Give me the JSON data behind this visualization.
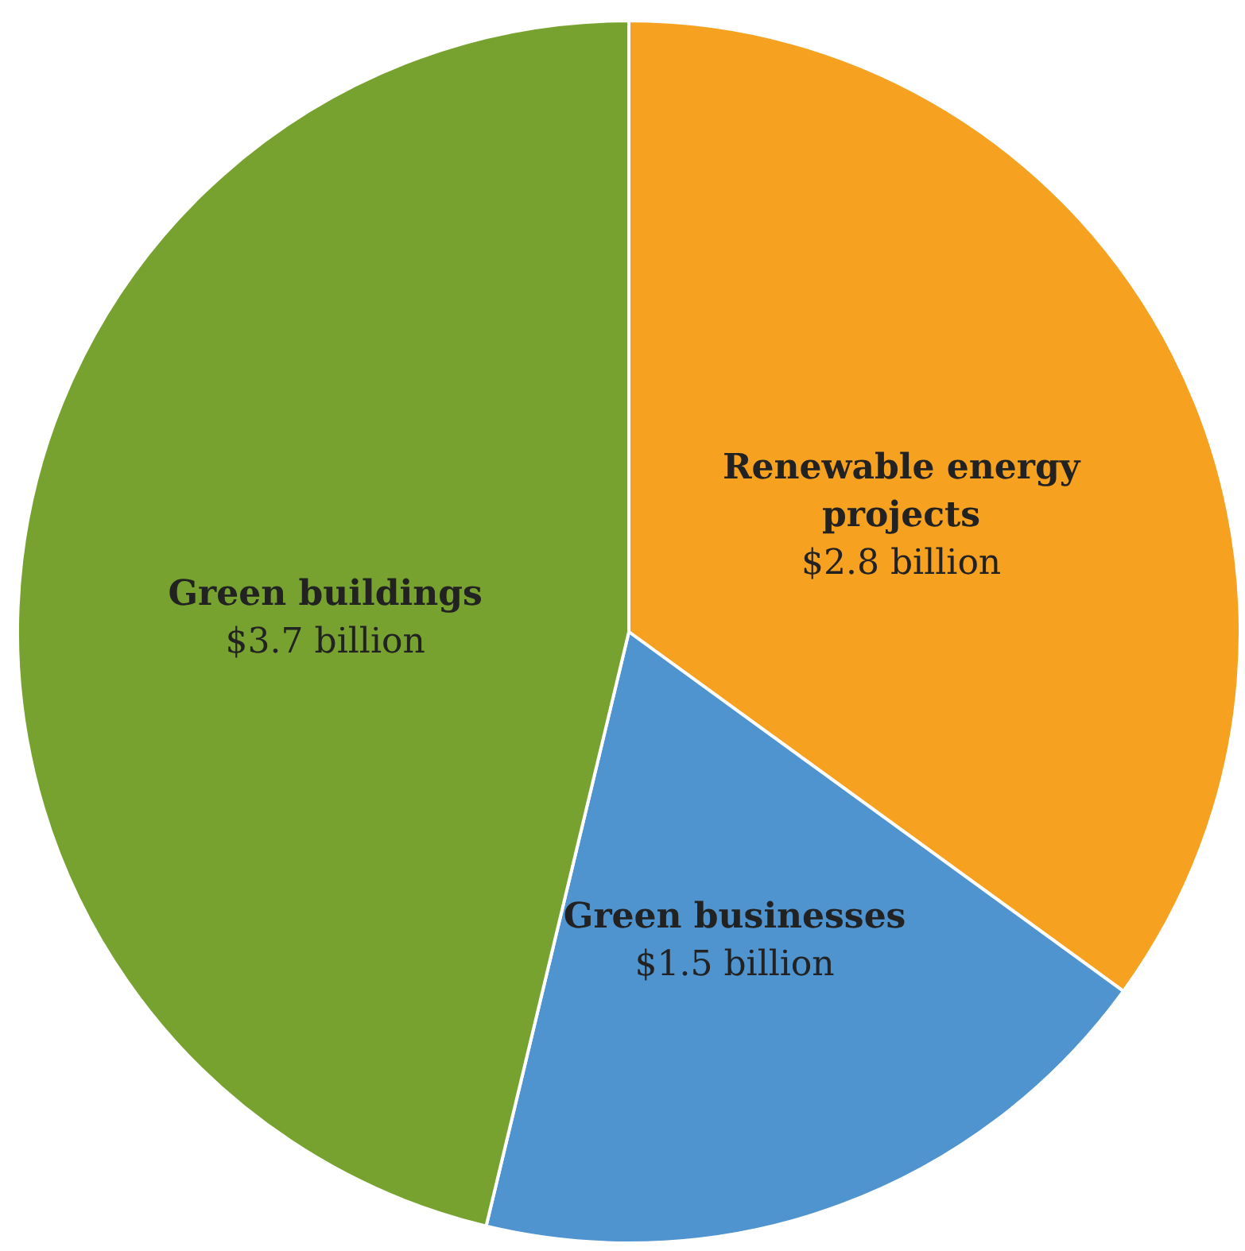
{
  "chart_data": {
    "type": "pie",
    "categories": [
      "Renewable energy projects",
      "Green businesses",
      "Green buildings"
    ],
    "values": [
      2.8,
      1.5,
      3.7
    ],
    "value_labels": [
      "$2.8 billion",
      "$1.5 billion",
      "$3.7 billion"
    ],
    "colors": [
      "#f6a11f",
      "#4f94cf",
      "#78a22f"
    ],
    "legend": false
  }
}
